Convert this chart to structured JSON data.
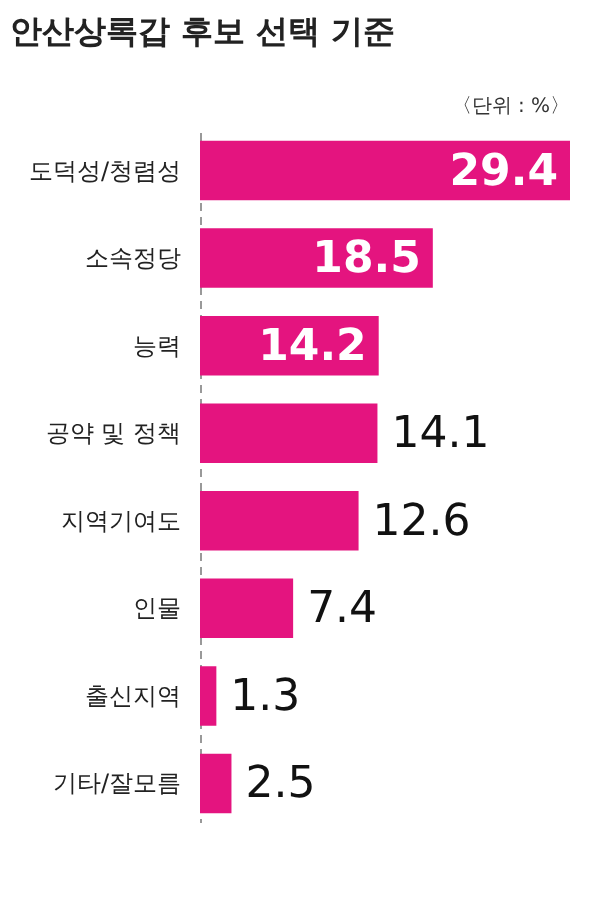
{
  "chart_data": {
    "type": "bar",
    "orientation": "horizontal",
    "title": "안산상록갑 후보 선택 기준",
    "annotations": [
      "〈단위 : %〉"
    ],
    "categories": [
      "도덕성/청렴성",
      "소속정당",
      "능력",
      "공약 및 정책",
      "지역기여도",
      "인물",
      "출신지역",
      "기타/잘모름"
    ],
    "values": [
      29.4,
      18.5,
      14.2,
      14.1,
      12.6,
      7.4,
      1.3,
      2.5
    ],
    "color": "#e4147f",
    "data_labels": true
  }
}
